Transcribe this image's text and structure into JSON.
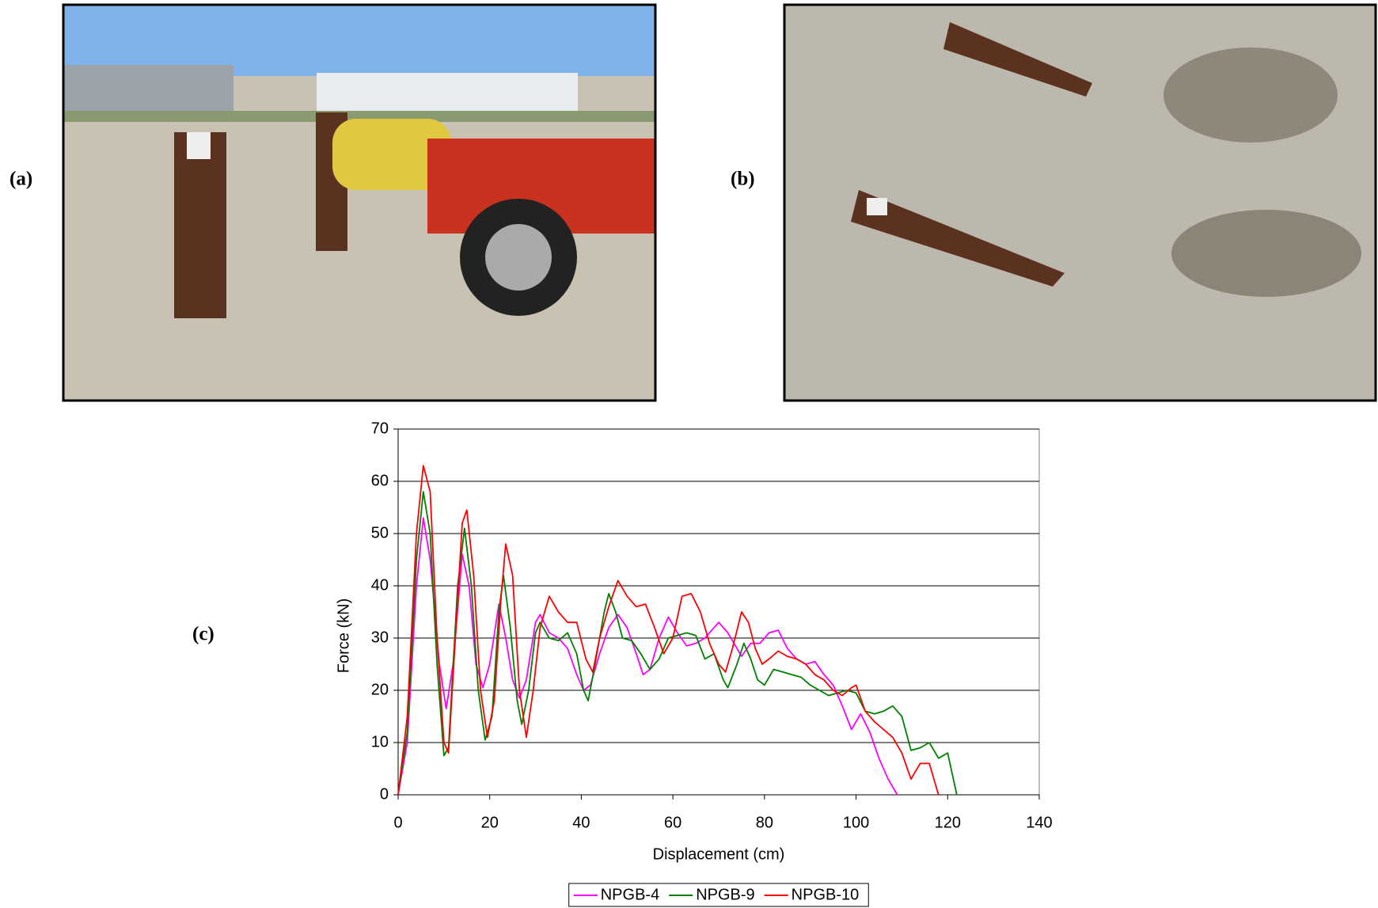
{
  "panel_labels": [
    "(a)",
    "(b)",
    "(c)"
  ],
  "chart_data": {
    "type": "line",
    "x_label": "Displacement (cm)",
    "y_label": "Force (kN)",
    "xlim": [
      0,
      140
    ],
    "xticks": [
      0,
      20,
      40,
      60,
      80,
      100,
      120,
      140
    ],
    "ylim": [
      0,
      70
    ],
    "yticks": [
      0,
      10,
      20,
      30,
      40,
      50,
      60,
      70
    ],
    "grid": true,
    "legend": "bottom",
    "series": [
      {
        "name": "NPGB-4",
        "color": "#ff00ff",
        "x": [
          0,
          2,
          4,
          5.5,
          7,
          9,
          10.5,
          12,
          14,
          15.5,
          17,
          18.5,
          20,
          22,
          23.5,
          25,
          26.5,
          28,
          30,
          31,
          33,
          35,
          37,
          39,
          40.5,
          42,
          44,
          46,
          48,
          50,
          52,
          53.5,
          55,
          57,
          59,
          61,
          63,
          65,
          67,
          69,
          70,
          72,
          74,
          75,
          77,
          79,
          81,
          83,
          85,
          87,
          89,
          91,
          93,
          95,
          97,
          99,
          101,
          103,
          105,
          107,
          109
        ],
        "values": [
          0,
          10,
          40,
          53,
          45,
          25,
          16.5,
          25,
          46,
          40,
          25,
          20.5,
          25,
          36.5,
          30,
          22,
          18.5,
          22,
          33,
          34.5,
          31,
          30,
          28,
          23,
          20,
          21,
          27,
          32,
          34.5,
          32,
          27,
          23,
          24,
          30,
          34,
          31,
          28.5,
          29,
          30,
          32,
          33,
          31,
          28,
          26.5,
          29,
          29,
          31,
          31.5,
          28,
          26,
          25,
          25.5,
          23,
          21,
          17,
          12.5,
          15.5,
          12,
          7,
          3,
          0
        ]
      },
      {
        "name": "NPGB-9",
        "color": "#008000",
        "x": [
          0,
          2,
          4,
          5.5,
          7,
          8.5,
          10,
          11,
          13,
          14.5,
          16,
          17.5,
          19,
          20.5,
          22,
          23,
          24.5,
          26,
          27,
          28.5,
          30,
          31,
          33,
          35,
          37,
          39,
          40.5,
          41.5,
          43,
          45,
          46,
          47.5,
          49,
          51,
          53,
          55,
          57,
          59,
          61,
          63,
          65,
          67,
          69,
          71,
          72,
          74,
          75.5,
          77,
          78.5,
          80,
          82,
          84,
          86,
          88,
          90,
          92,
          94,
          96,
          98,
          100,
          102,
          104,
          106,
          108,
          110,
          112,
          114,
          116,
          118,
          120,
          122
        ],
        "values": [
          0,
          12,
          45,
          58,
          50,
          25,
          7.5,
          9,
          40,
          51,
          40,
          20,
          10.5,
          15,
          35,
          42,
          32,
          18,
          13.5,
          20,
          31,
          33,
          30,
          29.5,
          31,
          27,
          20,
          18,
          25,
          35,
          38.5,
          35,
          30,
          29.5,
          27,
          24,
          26,
          30,
          30.5,
          31,
          30.5,
          26,
          27,
          22,
          20.5,
          25,
          29,
          26,
          22,
          21,
          24,
          23.5,
          23,
          22.5,
          21,
          20,
          19,
          19.5,
          20,
          19.5,
          16,
          15.5,
          16,
          17,
          15,
          8.5,
          9,
          10,
          7,
          8,
          0
        ]
      },
      {
        "name": "NPGB-10",
        "color": "#ff0000",
        "x": [
          0,
          2,
          4,
          5.5,
          7,
          8.5,
          10,
          11,
          12.5,
          14,
          15,
          16.5,
          18,
          19.5,
          21,
          22.5,
          23.5,
          25,
          26.5,
          28,
          29.5,
          31,
          33,
          35,
          37,
          39,
          41,
          42.5,
          44,
          46,
          48,
          50,
          52,
          54,
          56,
          58,
          60,
          62,
          64,
          66,
          68,
          70,
          71.5,
          73,
          75,
          76.5,
          78,
          79.5,
          81,
          83,
          85,
          87,
          89,
          91,
          93,
          95,
          97,
          99,
          100,
          102,
          104,
          106,
          108,
          110,
          112,
          114,
          116,
          118
        ],
        "values": [
          0,
          15,
          50,
          63,
          58,
          30,
          10,
          8,
          30,
          52,
          54.5,
          42,
          20,
          11,
          18,
          38,
          48,
          42,
          20,
          11,
          20,
          32,
          38,
          35,
          33,
          33,
          26,
          23.5,
          30,
          36,
          41,
          38,
          36,
          36.5,
          32,
          27,
          30,
          38,
          38.5,
          35,
          29,
          25,
          23.5,
          28,
          35,
          33,
          28,
          25,
          26,
          27.5,
          26.5,
          26,
          25,
          23,
          22,
          20,
          19,
          20.5,
          21,
          16,
          14,
          12.5,
          11,
          8,
          3,
          6,
          6,
          0
        ]
      }
    ]
  }
}
